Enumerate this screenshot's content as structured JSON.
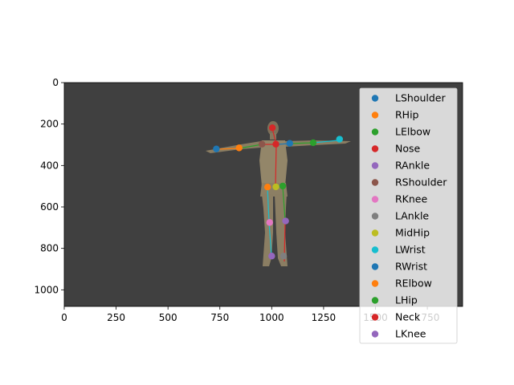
{
  "chart_data": {
    "type": "scatter",
    "title": "",
    "xlabel": "",
    "ylabel": "",
    "xlim": [
      0,
      1920
    ],
    "ylim": [
      1080,
      0
    ],
    "y_inverted": true,
    "xticks": [
      0,
      250,
      500,
      750,
      1000,
      1250,
      1500,
      1750
    ],
    "yticks": [
      0,
      200,
      400,
      600,
      800,
      1000
    ],
    "background_color": "#404040",
    "legend_position": "upper-right",
    "grid": false,
    "series": [
      {
        "name": "LShoulder",
        "color": "#1f77b4",
        "x": 1087,
        "y": 293
      },
      {
        "name": "RHip",
        "color": "#ff7f0e",
        "x": 980,
        "y": 504
      },
      {
        "name": "LElbow",
        "color": "#2ca02c",
        "x": 1200,
        "y": 290
      },
      {
        "name": "Nose",
        "color": "#d62728",
        "x": 1003,
        "y": 218
      },
      {
        "name": "RAnkle",
        "color": "#9467bd",
        "x": 1000,
        "y": 837
      },
      {
        "name": "RShoulder",
        "color": "#8c564b",
        "x": 953,
        "y": 297
      },
      {
        "name": "RKnee",
        "color": "#e377c2",
        "x": 990,
        "y": 675
      },
      {
        "name": "LAnkle",
        "color": "#7f7f7f",
        "x": 1057,
        "y": 837
      },
      {
        "name": "MidHip",
        "color": "#bcbd22",
        "x": 1020,
        "y": 503
      },
      {
        "name": "LWrist",
        "color": "#17becf",
        "x": 1327,
        "y": 273
      },
      {
        "name": "RWrist",
        "color": "#1f77b4",
        "x": 733,
        "y": 320
      },
      {
        "name": "RElbow",
        "color": "#ff7f0e",
        "x": 843,
        "y": 315
      },
      {
        "name": "LHip",
        "color": "#2ca02c",
        "x": 1053,
        "y": 499
      },
      {
        "name": "Neck",
        "color": "#d62728",
        "x": 1020,
        "y": 297
      },
      {
        "name": "LKnee",
        "color": "#9467bd",
        "x": 1067,
        "y": 668
      }
    ]
  }
}
